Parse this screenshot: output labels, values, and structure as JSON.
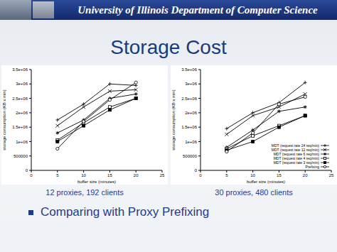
{
  "header": "University of Illinois Department of Computer Science",
  "title": "Storage Cost",
  "bullets": [
    "Comparing with Proxy Prefixing"
  ],
  "chart_data": [
    {
      "type": "line",
      "caption": "12 proxies, 192 clients",
      "x_label": "buffer size (minutes)",
      "y_label": "storage consumption (KB x min)",
      "xlim": [
        0,
        25
      ],
      "xticks": [
        0,
        5,
        10,
        15,
        20,
        25
      ],
      "ylim": [
        0,
        3500000
      ],
      "yticks": [
        0,
        500000,
        {
          "value": 1000000,
          "label": "1e+06"
        },
        {
          "value": 1500000,
          "label": "1.5e+06"
        },
        {
          "value": 2000000,
          "label": "2e+06"
        },
        {
          "value": 2500000,
          "label": "2.5e+06"
        },
        {
          "value": 3000000,
          "label": "3e+06"
        },
        {
          "value": 3500000,
          "label": "3.5e+06"
        }
      ],
      "grid": false,
      "x": [
        5,
        10,
        15,
        20
      ],
      "series": [
        {
          "color": "#000000",
          "marker": "plus",
          "line_style": "solid",
          "values": [
            1750000,
            2300000,
            3000000,
            2950000
          ]
        },
        {
          "color": "#000000",
          "marker": "cross",
          "line_style": "solid",
          "values": [
            1550000,
            2200000,
            2750000,
            2800000
          ]
        },
        {
          "color": "#000000",
          "marker": "star",
          "line_style": "solid",
          "values": [
            1300000,
            1750000,
            2500000,
            2650000
          ]
        },
        {
          "color": "#000000",
          "marker": "square",
          "line_style": "solid",
          "values": [
            1050000,
            1650000,
            2200000,
            2500000
          ]
        },
        {
          "color": "#000000",
          "marker": "filled_square",
          "line_style": "solid",
          "values": [
            1000000,
            1550000,
            2100000,
            2500000
          ]
        },
        {
          "color": "#000000",
          "marker": "circle",
          "line_style": "solid",
          "values": [
            750000,
            1700000,
            2450000,
            3050000
          ]
        }
      ]
    },
    {
      "type": "line",
      "caption": "30 proxies, 480 clients",
      "x_label": "buffer size (minutes)",
      "y_label": "storage consumption (KB x min)",
      "xlim": [
        0,
        25
      ],
      "xticks": [
        0,
        5,
        10,
        15,
        20,
        25
      ],
      "ylim": [
        0,
        3500000
      ],
      "yticks": [
        0,
        500000,
        {
          "value": 1000000,
          "label": "1e+06"
        },
        {
          "value": 1500000,
          "label": "1.5e+06"
        },
        {
          "value": 2000000,
          "label": "2e+06"
        },
        {
          "value": 2500000,
          "label": "2.5e+06"
        },
        {
          "value": 3000000,
          "label": "3e+06"
        },
        {
          "value": 3500000,
          "label": "3.5e+06"
        }
      ],
      "grid": false,
      "legend": "lower right",
      "x": [
        5,
        10,
        15,
        20
      ],
      "series": [
        {
          "name": "MDT (request rate 24 req/min)",
          "color": "#000000",
          "marker": "plus",
          "line_style": "solid",
          "values": [
            1450000,
            2000000,
            2350000,
            3050000
          ]
        },
        {
          "name": "MDT (request rate 12 req/min)",
          "color": "#000000",
          "marker": "cross",
          "line_style": "solid",
          "values": [
            1250000,
            1900000,
            2200000,
            2650000
          ]
        },
        {
          "name": "MDT (request rate 6 req/min)",
          "color": "#000000",
          "marker": "star",
          "line_style": "solid",
          "values": [
            800000,
            1400000,
            2050000,
            2200000
          ]
        },
        {
          "name": "MDT (request rate 4 req/min)",
          "color": "#000000",
          "marker": "square",
          "line_style": "solid",
          "values": [
            750000,
            1200000,
            1550000,
            1900000
          ]
        },
        {
          "name": "MDT (request rate 3 req/min)",
          "color": "#000000",
          "marker": "filled_square",
          "line_style": "solid",
          "values": [
            700000,
            1000000,
            1500000,
            1900000
          ]
        },
        {
          "name": "Prefixing",
          "color": "#000000",
          "marker": "circle",
          "line_style": "solid",
          "values": [
            650000,
            1300000,
            2300000,
            2550000
          ]
        }
      ]
    }
  ]
}
